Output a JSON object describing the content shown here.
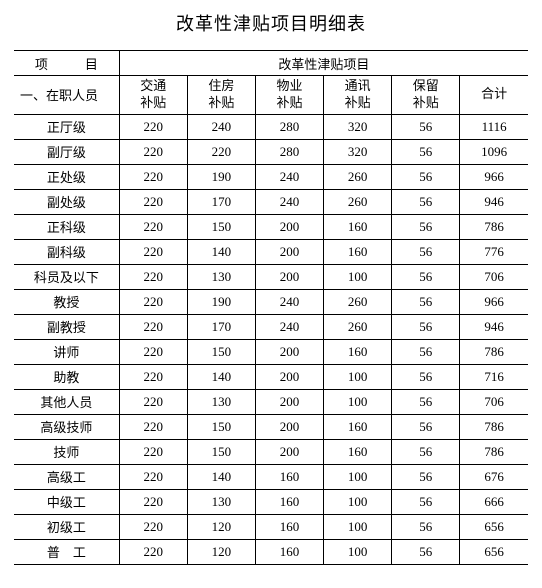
{
  "title": "改革性津贴项目明细表",
  "header": {
    "project": "项　目",
    "group": "改革性津贴项目",
    "section": "一、在职人员",
    "columns": [
      "交通\n补贴",
      "住房\n补贴",
      "物业\n补贴",
      "通讯\n补贴",
      "保留\n补贴",
      "合计"
    ]
  },
  "rows": [
    {
      "label": "正厅级",
      "v": [
        220,
        240,
        280,
        320,
        56,
        1116
      ]
    },
    {
      "label": "副厅级",
      "v": [
        220,
        220,
        280,
        320,
        56,
        1096
      ]
    },
    {
      "label": "正处级",
      "v": [
        220,
        190,
        240,
        260,
        56,
        966
      ]
    },
    {
      "label": "副处级",
      "v": [
        220,
        170,
        240,
        260,
        56,
        946
      ]
    },
    {
      "label": "正科级",
      "v": [
        220,
        150,
        200,
        160,
        56,
        786
      ]
    },
    {
      "label": "副科级",
      "v": [
        220,
        140,
        200,
        160,
        56,
        776
      ]
    },
    {
      "label": "科员及以下",
      "v": [
        220,
        130,
        200,
        100,
        56,
        706
      ]
    },
    {
      "label": "教授",
      "v": [
        220,
        190,
        240,
        260,
        56,
        966
      ]
    },
    {
      "label": "副教授",
      "v": [
        220,
        170,
        240,
        260,
        56,
        946
      ]
    },
    {
      "label": "讲师",
      "v": [
        220,
        150,
        200,
        160,
        56,
        786
      ]
    },
    {
      "label": "助教",
      "v": [
        220,
        140,
        200,
        100,
        56,
        716
      ]
    },
    {
      "label": "其他人员",
      "v": [
        220,
        130,
        200,
        100,
        56,
        706
      ]
    },
    {
      "label": "高级技师",
      "v": [
        220,
        150,
        200,
        160,
        56,
        786
      ]
    },
    {
      "label": "技师",
      "v": [
        220,
        150,
        200,
        160,
        56,
        786
      ]
    },
    {
      "label": "高级工",
      "v": [
        220,
        140,
        160,
        100,
        56,
        676
      ]
    },
    {
      "label": "中级工",
      "v": [
        220,
        130,
        160,
        100,
        56,
        666
      ]
    },
    {
      "label": "初级工",
      "v": [
        220,
        120,
        160,
        100,
        56,
        656
      ]
    },
    {
      "label": "普　工",
      "v": [
        220,
        120,
        160,
        100,
        56,
        656
      ]
    }
  ],
  "style": {
    "border_color": "#000000",
    "background": "#ffffff",
    "font_size_body": 13,
    "font_size_title": 18
  }
}
